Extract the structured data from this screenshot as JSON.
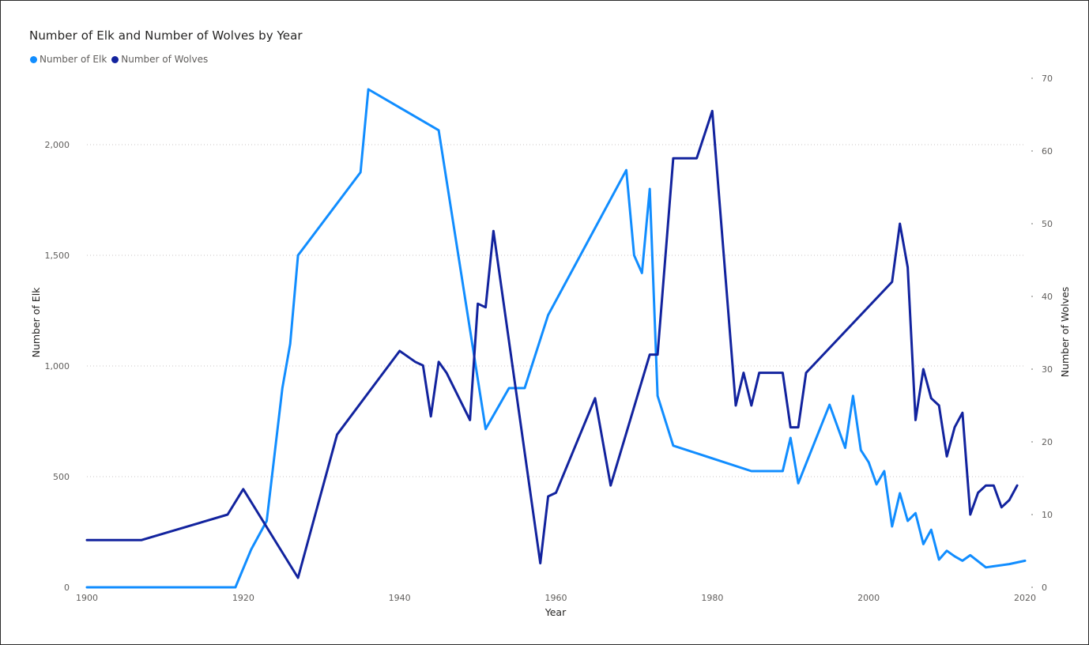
{
  "chart_data": {
    "type": "line",
    "title": "Number of Elk and Number of Wolves by Year",
    "xlabel": "Year",
    "ylabel_left": "Number of Elk",
    "ylabel_right": "Number of Wolves",
    "xlim": [
      1900,
      2020
    ],
    "ylim_left": [
      0,
      2300
    ],
    "ylim_right": [
      0,
      70
    ],
    "x_ticks": [
      1900,
      1920,
      1940,
      1960,
      1980,
      2000,
      2020
    ],
    "y_left_ticks": [
      0,
      500,
      1000,
      1500,
      2000
    ],
    "y_left_tick_labels": [
      "0",
      "500",
      "1,000",
      "1,500",
      "2,000"
    ],
    "y_right_ticks": [
      0,
      10,
      20,
      30,
      40,
      50,
      60,
      70
    ],
    "grid": true,
    "legend_position": "top-left",
    "series": [
      {
        "name": "Number of Elk",
        "axis": "left",
        "color": "#118DFF",
        "points": [
          [
            1900,
            0
          ],
          [
            1919,
            0
          ],
          [
            1921,
            170
          ],
          [
            1923,
            300
          ],
          [
            1925,
            900
          ],
          [
            1926,
            1100
          ],
          [
            1927,
            1500
          ],
          [
            1935,
            1875
          ],
          [
            1936,
            2250
          ],
          [
            1945,
            2065
          ],
          [
            1951,
            715
          ],
          [
            1954,
            900
          ],
          [
            1956,
            900
          ],
          [
            1959,
            1230
          ],
          [
            1969,
            1885
          ],
          [
            1970,
            1500
          ],
          [
            1971,
            1420
          ],
          [
            1972,
            1800
          ],
          [
            1973,
            865
          ],
          [
            1975,
            640
          ],
          [
            1985,
            525
          ],
          [
            1989,
            525
          ],
          [
            1990,
            675
          ],
          [
            1991,
            470
          ],
          [
            1995,
            825
          ],
          [
            1997,
            630
          ],
          [
            1998,
            865
          ],
          [
            1999,
            620
          ],
          [
            2000,
            565
          ],
          [
            2001,
            465
          ],
          [
            2002,
            525
          ],
          [
            2003,
            275
          ],
          [
            2004,
            425
          ],
          [
            2005,
            300
          ],
          [
            2006,
            335
          ],
          [
            2007,
            195
          ],
          [
            2008,
            260
          ],
          [
            2009,
            125
          ],
          [
            2010,
            165
          ],
          [
            2011,
            140
          ],
          [
            2012,
            120
          ],
          [
            2013,
            145
          ],
          [
            2015,
            90
          ],
          [
            2016,
            95
          ],
          [
            2018,
            105
          ],
          [
            2020,
            120
          ]
        ]
      },
      {
        "name": "Number of Wolves",
        "axis": "right",
        "color": "#12239E",
        "points": [
          [
            1900,
            6.5
          ],
          [
            1907,
            6.5
          ],
          [
            1918,
            10
          ],
          [
            1920,
            13.5
          ],
          [
            1927,
            1.3
          ],
          [
            1932,
            21
          ],
          [
            1940,
            32.5
          ],
          [
            1942,
            31
          ],
          [
            1943,
            30.5
          ],
          [
            1944,
            23.5
          ],
          [
            1945,
            31
          ],
          [
            1946,
            29.5
          ],
          [
            1949,
            23
          ],
          [
            1950,
            39
          ],
          [
            1951,
            38.5
          ],
          [
            1952,
            49
          ],
          [
            1958,
            3.3
          ],
          [
            1959,
            12.5
          ],
          [
            1960,
            13
          ],
          [
            1965,
            26
          ],
          [
            1967,
            14
          ],
          [
            1972,
            32
          ],
          [
            1973,
            32
          ],
          [
            1975,
            59
          ],
          [
            1978,
            59
          ],
          [
            1980,
            65.5
          ],
          [
            1983,
            25
          ],
          [
            1984,
            29.5
          ],
          [
            1985,
            25
          ],
          [
            1986,
            29.5
          ],
          [
            1989,
            29.5
          ],
          [
            1990,
            22
          ],
          [
            1991,
            22
          ],
          [
            1992,
            29.5
          ],
          [
            2003,
            42
          ],
          [
            2004,
            50
          ],
          [
            2005,
            44
          ],
          [
            2006,
            23
          ],
          [
            2007,
            30
          ],
          [
            2008,
            26
          ],
          [
            2009,
            25
          ],
          [
            2010,
            18
          ],
          [
            2011,
            22
          ],
          [
            2012,
            24
          ],
          [
            2013,
            10
          ],
          [
            2014,
            13
          ],
          [
            2015,
            14
          ],
          [
            2016,
            14
          ],
          [
            2017,
            11
          ],
          [
            2018,
            12
          ],
          [
            2019,
            14
          ]
        ]
      }
    ]
  }
}
